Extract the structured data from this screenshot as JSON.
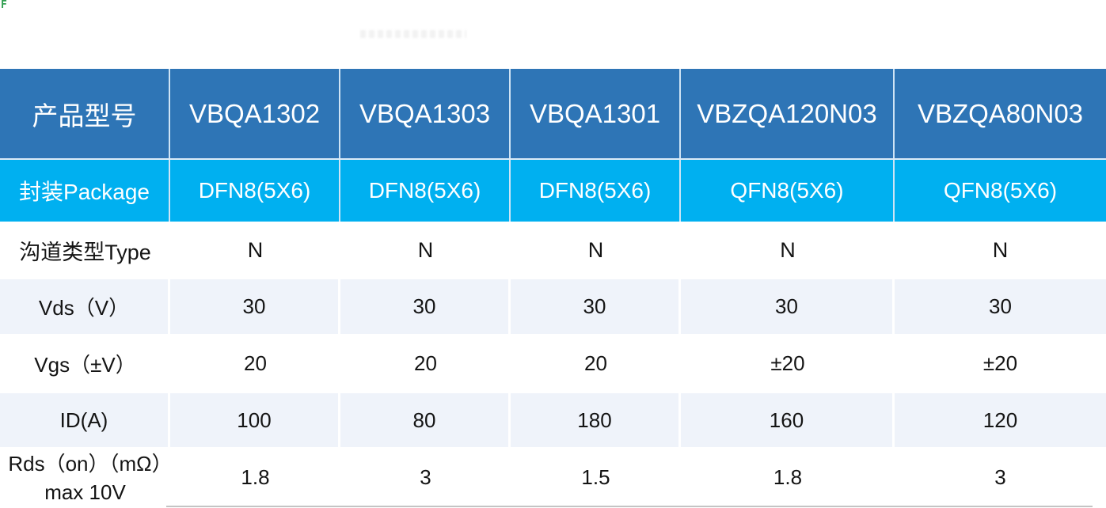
{
  "page": {
    "corner_mark": "F"
  },
  "colors": {
    "header_bg": "#2E75B6",
    "package_bg": "#00B0F0",
    "stripe_bg": "#EFF3FA",
    "header_text": "#FFFFFF",
    "body_text": "#141414",
    "divider": "#CFE4F5",
    "corner_mark_green": "#2F9E4F",
    "bottom_line": "#C4C4C4"
  },
  "table": {
    "header": {
      "label": "产品型号",
      "products": [
        "VBQA1302",
        "VBQA1303",
        "VBQA1301",
        "VBZQA120N03",
        "VBZQA80N03"
      ]
    },
    "rows": [
      {
        "label": "封装Package",
        "values": [
          "DFN8(5X6)",
          "DFN8(5X6)",
          "DFN8(5X6)",
          "QFN8(5X6)",
          "QFN8(5X6)"
        ]
      },
      {
        "label": "沟道类型Type",
        "values": [
          "N",
          "N",
          "N",
          "N",
          "N"
        ]
      },
      {
        "label": "Vds（V）",
        "values": [
          "30",
          "30",
          "30",
          "30",
          "30"
        ]
      },
      {
        "label": "Vgs（±V）",
        "values": [
          "20",
          "20",
          "20",
          "±20",
          "±20"
        ]
      },
      {
        "label": "ID(A)",
        "values": [
          "100",
          "80",
          "180",
          "160",
          "120"
        ]
      },
      {
        "label": "Rds（on）（mΩ）max 10V",
        "values": [
          "1.8",
          "3",
          "1.5",
          "1.8",
          "3"
        ]
      }
    ]
  }
}
